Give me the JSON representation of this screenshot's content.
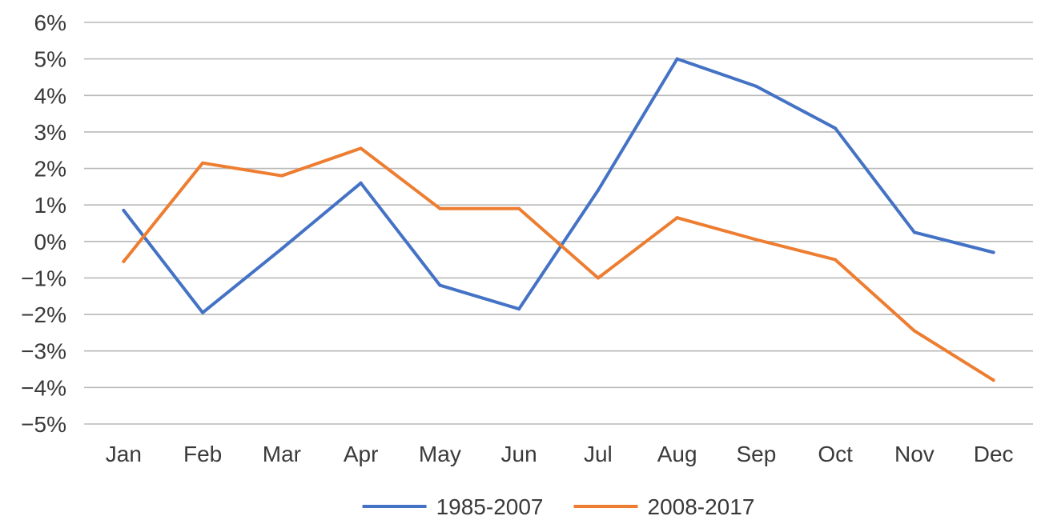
{
  "chart_data": {
    "type": "line",
    "title": "",
    "xlabel": "",
    "ylabel": "",
    "categories": [
      "Jan",
      "Feb",
      "Mar",
      "Apr",
      "May",
      "Jun",
      "Jul",
      "Aug",
      "Sep",
      "Oct",
      "Nov",
      "Dec"
    ],
    "ylim": [
      -5,
      6
    ],
    "yticks": [
      {
        "value": 6,
        "label": "6%"
      },
      {
        "value": 5,
        "label": "5%"
      },
      {
        "value": 4,
        "label": "4%"
      },
      {
        "value": 3,
        "label": "3%"
      },
      {
        "value": 2,
        "label": "2%"
      },
      {
        "value": 1,
        "label": "1%"
      },
      {
        "value": 0,
        "label": "0%"
      },
      {
        "value": -1,
        "label": "−1%"
      },
      {
        "value": -2,
        "label": "−2%"
      },
      {
        "value": -3,
        "label": "−3%"
      },
      {
        "value": -4,
        "label": "−4%"
      },
      {
        "value": -5,
        "label": "−5%"
      }
    ],
    "grid": true,
    "legend": "bottom",
    "series": [
      {
        "name": "1985-2007",
        "color": "#4472c4",
        "values": [
          0.85,
          -1.95,
          -0.2,
          1.6,
          -1.2,
          -1.85,
          1.4,
          5.0,
          4.25,
          3.1,
          0.25,
          -0.3
        ]
      },
      {
        "name": "2008-2017",
        "color": "#ed7d31",
        "values": [
          -0.55,
          2.15,
          1.8,
          2.55,
          0.9,
          0.9,
          -1.0,
          0.65,
          0.05,
          -0.5,
          -2.45,
          -3.8
        ]
      }
    ]
  }
}
